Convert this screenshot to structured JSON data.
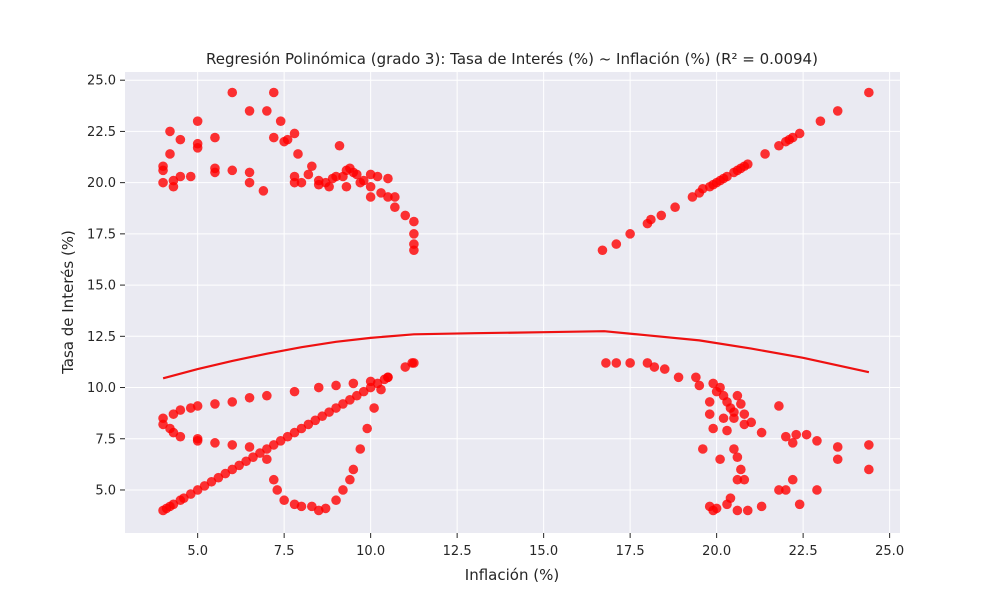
{
  "chart_data": {
    "type": "scatter",
    "title": "Regresión Polinómica (grado 3): Tasa de Interés (%) ~ Inflación (%) (R² = 0.0094)",
    "xlabel": "Inflación (%)",
    "ylabel": "Tasa de Interés (%)",
    "xlim": [
      2.9,
      25.3
    ],
    "ylim": [
      2.9,
      25.4
    ],
    "xticks": [
      5.0,
      7.5,
      10.0,
      12.5,
      15.0,
      17.5,
      20.0,
      22.5,
      25.0
    ],
    "xtick_labels": [
      "5.0",
      "7.5",
      "10.0",
      "12.5",
      "15.0",
      "17.5",
      "20.0",
      "22.5",
      "25.0"
    ],
    "yticks": [
      5.0,
      7.5,
      10.0,
      12.5,
      15.0,
      17.5,
      20.0,
      22.5,
      25.0
    ],
    "ytick_labels": [
      "5.0",
      "7.5",
      "10.0",
      "12.5",
      "15.0",
      "17.5",
      "20.0",
      "22.5",
      "25.0"
    ],
    "grid": true,
    "colors": {
      "points": "#ff0000",
      "curve": "#ee1111",
      "background": "#eaeaf2",
      "grid": "#ffffff"
    },
    "series": [
      {
        "type": "scatter",
        "points": [
          [
            4.0,
            4.0
          ],
          [
            4.1,
            4.1
          ],
          [
            4.2,
            4.2
          ],
          [
            4.3,
            4.3
          ],
          [
            4.5,
            4.5
          ],
          [
            4.6,
            4.6
          ],
          [
            4.8,
            4.8
          ],
          [
            5.0,
            5.0
          ],
          [
            5.2,
            5.2
          ],
          [
            5.4,
            5.4
          ],
          [
            5.6,
            5.6
          ],
          [
            5.8,
            5.8
          ],
          [
            6.0,
            6.0
          ],
          [
            6.2,
            6.2
          ],
          [
            6.4,
            6.4
          ],
          [
            6.6,
            6.6
          ],
          [
            6.8,
            6.8
          ],
          [
            7.0,
            7.0
          ],
          [
            7.2,
            7.2
          ],
          [
            7.4,
            7.4
          ],
          [
            7.6,
            7.6
          ],
          [
            7.8,
            7.8
          ],
          [
            8.0,
            8.0
          ],
          [
            8.2,
            8.2
          ],
          [
            8.4,
            8.4
          ],
          [
            8.6,
            8.6
          ],
          [
            8.8,
            8.8
          ],
          [
            9.0,
            9.0
          ],
          [
            9.2,
            9.2
          ],
          [
            9.4,
            9.4
          ],
          [
            9.6,
            9.6
          ],
          [
            9.8,
            9.8
          ],
          [
            10.0,
            10.0
          ],
          [
            10.2,
            10.2
          ],
          [
            10.4,
            10.4
          ],
          [
            10.5,
            10.5
          ],
          [
            11.0,
            11.0
          ],
          [
            11.25,
            11.2
          ],
          [
            4.0,
            8.5
          ],
          [
            4.0,
            8.2
          ],
          [
            4.3,
            8.7
          ],
          [
            4.5,
            8.9
          ],
          [
            4.8,
            9.0
          ],
          [
            5.0,
            9.1
          ],
          [
            5.5,
            9.2
          ],
          [
            6.0,
            9.3
          ],
          [
            6.5,
            9.5
          ],
          [
            7.0,
            9.6
          ],
          [
            7.8,
            9.8
          ],
          [
            8.5,
            10.0
          ],
          [
            9.0,
            10.1
          ],
          [
            9.5,
            10.2
          ],
          [
            10.0,
            10.3
          ],
          [
            10.5,
            10.5
          ],
          [
            11.2,
            11.2
          ],
          [
            4.2,
            8.0
          ],
          [
            4.3,
            7.8
          ],
          [
            4.5,
            7.6
          ],
          [
            5.0,
            7.4
          ],
          [
            5.0,
            7.5
          ],
          [
            5.5,
            7.3
          ],
          [
            6.0,
            7.2
          ],
          [
            6.5,
            7.1
          ],
          [
            7.0,
            6.5
          ],
          [
            7.2,
            5.5
          ],
          [
            7.3,
            5.0
          ],
          [
            7.5,
            4.5
          ],
          [
            7.8,
            4.3
          ],
          [
            8.0,
            4.2
          ],
          [
            8.3,
            4.2
          ],
          [
            8.5,
            4.0
          ],
          [
            8.7,
            4.1
          ],
          [
            9.0,
            4.5
          ],
          [
            9.2,
            5.0
          ],
          [
            9.4,
            5.5
          ],
          [
            9.5,
            6.0
          ],
          [
            9.7,
            7.0
          ],
          [
            9.9,
            8.0
          ],
          [
            10.1,
            9.0
          ],
          [
            10.3,
            9.9
          ],
          [
            4.0,
            20.0
          ],
          [
            4.0,
            20.6
          ],
          [
            4.0,
            20.8
          ],
          [
            4.2,
            21.4
          ],
          [
            4.2,
            22.5
          ],
          [
            4.3,
            19.8
          ],
          [
            4.3,
            20.1
          ],
          [
            4.5,
            20.3
          ],
          [
            4.8,
            20.3
          ],
          [
            4.5,
            22.1
          ],
          [
            5.0,
            21.7
          ],
          [
            5.0,
            21.9
          ],
          [
            5.0,
            23.0
          ],
          [
            5.5,
            22.2
          ],
          [
            5.5,
            20.5
          ],
          [
            5.5,
            20.7
          ],
          [
            6.0,
            20.6
          ],
          [
            6.0,
            24.4
          ],
          [
            6.5,
            23.5
          ],
          [
            6.5,
            20.5
          ],
          [
            6.5,
            20.0
          ],
          [
            6.9,
            19.6
          ],
          [
            7.0,
            23.5
          ],
          [
            7.2,
            24.4
          ],
          [
            7.2,
            22.2
          ],
          [
            7.4,
            23.0
          ],
          [
            7.5,
            22.0
          ],
          [
            7.6,
            22.1
          ],
          [
            7.8,
            22.4
          ],
          [
            7.9,
            21.4
          ],
          [
            7.8,
            20.3
          ],
          [
            7.8,
            20.0
          ],
          [
            8.0,
            20.0
          ],
          [
            8.2,
            20.4
          ],
          [
            8.3,
            20.8
          ],
          [
            8.5,
            20.1
          ],
          [
            8.5,
            19.9
          ],
          [
            8.7,
            20.0
          ],
          [
            8.8,
            19.8
          ],
          [
            8.9,
            20.2
          ],
          [
            9.0,
            20.3
          ],
          [
            9.2,
            20.3
          ],
          [
            9.1,
            21.8
          ],
          [
            9.3,
            20.6
          ],
          [
            9.4,
            20.7
          ],
          [
            9.5,
            20.5
          ],
          [
            9.6,
            20.4
          ],
          [
            9.8,
            20.1
          ],
          [
            9.3,
            19.8
          ],
          [
            9.7,
            20.0
          ],
          [
            10.0,
            20.4
          ],
          [
            10.0,
            19.8
          ],
          [
            10.2,
            20.3
          ],
          [
            10.0,
            19.3
          ],
          [
            10.3,
            19.5
          ],
          [
            10.5,
            19.3
          ],
          [
            10.7,
            19.3
          ],
          [
            10.7,
            18.8
          ],
          [
            10.5,
            20.2
          ],
          [
            11.0,
            18.4
          ],
          [
            11.25,
            18.1
          ],
          [
            11.25,
            17.5
          ],
          [
            11.25,
            17.0
          ],
          [
            11.25,
            16.7
          ],
          [
            16.7,
            16.7
          ],
          [
            17.1,
            17.0
          ],
          [
            17.5,
            17.5
          ],
          [
            18.0,
            18.0
          ],
          [
            18.1,
            18.2
          ],
          [
            18.4,
            18.4
          ],
          [
            18.8,
            18.8
          ],
          [
            19.3,
            19.3
          ],
          [
            19.5,
            19.5
          ],
          [
            19.6,
            19.7
          ],
          [
            19.8,
            19.8
          ],
          [
            19.9,
            19.9
          ],
          [
            20.0,
            20.0
          ],
          [
            20.1,
            20.1
          ],
          [
            20.2,
            20.2
          ],
          [
            20.3,
            20.3
          ],
          [
            20.5,
            20.5
          ],
          [
            20.6,
            20.6
          ],
          [
            20.7,
            20.7
          ],
          [
            20.8,
            20.8
          ],
          [
            20.9,
            20.9
          ],
          [
            21.4,
            21.4
          ],
          [
            21.8,
            21.8
          ],
          [
            22.0,
            22.0
          ],
          [
            22.1,
            22.1
          ],
          [
            22.2,
            22.2
          ],
          [
            22.4,
            22.4
          ],
          [
            23.0,
            23.0
          ],
          [
            23.5,
            23.5
          ],
          [
            24.4,
            24.4
          ],
          [
            16.8,
            11.2
          ],
          [
            17.1,
            11.2
          ],
          [
            17.5,
            11.2
          ],
          [
            18.0,
            11.2
          ],
          [
            18.2,
            11.0
          ],
          [
            18.5,
            10.9
          ],
          [
            18.9,
            10.5
          ],
          [
            19.4,
            10.5
          ],
          [
            19.5,
            10.1
          ],
          [
            19.6,
            7.0
          ],
          [
            19.9,
            10.2
          ],
          [
            20.0,
            9.8
          ],
          [
            20.1,
            10.0
          ],
          [
            20.2,
            9.6
          ],
          [
            20.3,
            9.3
          ],
          [
            20.4,
            9.0
          ],
          [
            20.5,
            8.8
          ],
          [
            20.6,
            9.6
          ],
          [
            20.7,
            9.2
          ],
          [
            20.8,
            8.7
          ],
          [
            20.5,
            8.5
          ],
          [
            20.2,
            8.5
          ],
          [
            19.8,
            8.7
          ],
          [
            19.8,
            9.3
          ],
          [
            19.9,
            8.0
          ],
          [
            20.3,
            7.9
          ],
          [
            20.1,
            6.5
          ],
          [
            20.5,
            7.0
          ],
          [
            20.6,
            6.6
          ],
          [
            20.7,
            6.0
          ],
          [
            20.6,
            5.5
          ],
          [
            20.8,
            5.5
          ],
          [
            19.8,
            4.2
          ],
          [
            19.9,
            4.0
          ],
          [
            20.0,
            4.1
          ],
          [
            20.3,
            4.3
          ],
          [
            20.4,
            4.6
          ],
          [
            20.6,
            4.0
          ],
          [
            20.9,
            4.0
          ],
          [
            20.8,
            8.2
          ],
          [
            21.0,
            8.3
          ],
          [
            21.3,
            7.8
          ],
          [
            21.3,
            4.2
          ],
          [
            21.8,
            9.1
          ],
          [
            21.8,
            5.0
          ],
          [
            22.0,
            5.0
          ],
          [
            22.0,
            7.6
          ],
          [
            22.2,
            7.3
          ],
          [
            22.2,
            5.5
          ],
          [
            22.3,
            7.7
          ],
          [
            22.4,
            4.3
          ],
          [
            22.6,
            7.7
          ],
          [
            22.9,
            7.4
          ],
          [
            22.9,
            5.0
          ],
          [
            23.5,
            7.1
          ],
          [
            23.5,
            6.5
          ],
          [
            24.4,
            7.2
          ],
          [
            24.4,
            6.0
          ]
        ]
      },
      {
        "type": "line",
        "x": [
          4.0,
          5.0,
          6.0,
          7.0,
          8.0,
          9.0,
          10.0,
          11.25,
          13.0,
          15.0,
          16.75,
          18.0,
          19.5,
          21.0,
          22.5,
          24.4
        ],
        "y": [
          10.45,
          10.9,
          11.3,
          11.65,
          11.97,
          12.23,
          12.42,
          12.6,
          12.65,
          12.7,
          12.75,
          12.55,
          12.3,
          11.9,
          11.45,
          10.75
        ]
      }
    ]
  }
}
